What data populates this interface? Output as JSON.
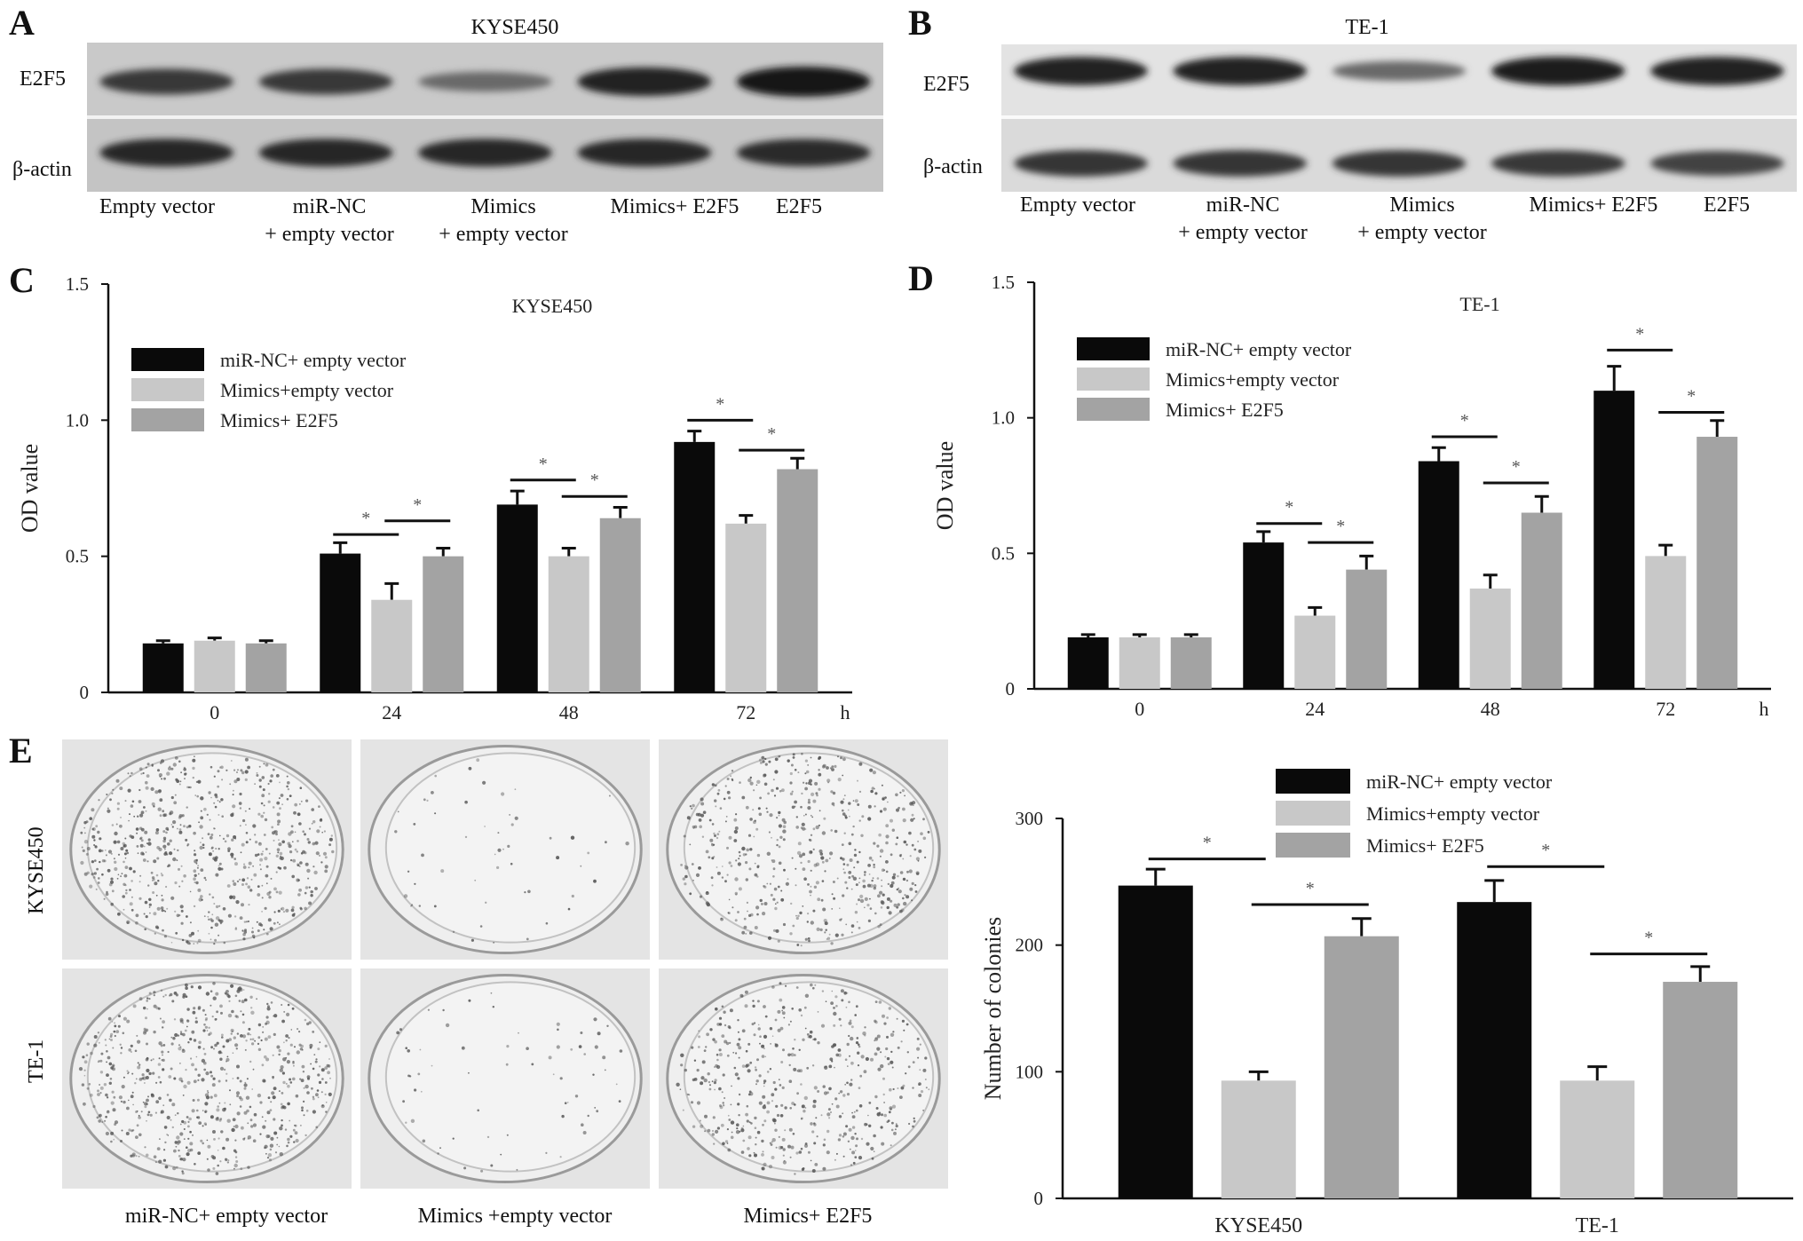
{
  "panel_letters": {
    "a": "A",
    "b": "B",
    "c": "C",
    "d": "D",
    "e": "E"
  },
  "western_blots": {
    "A": {
      "title": "KYSE450",
      "rows": [
        "E2F5",
        "β-actin"
      ],
      "lanes": [
        {
          "line1": "Empty vector",
          "line2": ""
        },
        {
          "line1": "miR-NC",
          "line2": "+ empty vector"
        },
        {
          "line1": "Mimics",
          "line2": "+ empty vector"
        },
        {
          "line1": "Mimics+ E2F5",
          "line2": ""
        },
        {
          "line1": "E2F5",
          "line2": ""
        }
      ],
      "e2f5_intensity": [
        0.72,
        0.72,
        0.35,
        0.9,
        1.0
      ],
      "actin_intensity": [
        0.85,
        0.85,
        0.85,
        0.85,
        0.82
      ]
    },
    "B": {
      "title": "TE-1",
      "rows": [
        "E2F5",
        "β-actin"
      ],
      "lanes": [
        {
          "line1": "Empty vector",
          "line2": ""
        },
        {
          "line1": "miR-NC",
          "line2": "+ empty vector"
        },
        {
          "line1": "Mimics",
          "line2": "+ empty vector"
        },
        {
          "line1": "Mimics+ E2F5",
          "line2": ""
        },
        {
          "line1": "E2F5",
          "line2": ""
        }
      ],
      "e2f5_intensity": [
        0.9,
        0.9,
        0.35,
        0.92,
        0.9
      ],
      "actin_intensity": [
        0.75,
        0.75,
        0.75,
        0.72,
        0.65
      ]
    }
  },
  "colony_panel": {
    "rows": [
      "KYSE450",
      "TE-1"
    ],
    "columns": [
      "miR-NC+ empty vector",
      "Mimics +empty vector",
      "Mimics+ E2F5"
    ],
    "colony_density": [
      [
        1.0,
        0.08,
        0.8
      ],
      [
        1.0,
        0.1,
        0.75
      ]
    ]
  },
  "colors": {
    "miR-NC+ empty vector": "#0a0a0a",
    "Mimics+empty vector": "#c8c8c8",
    "Mimics+ E2F5": "#a3a3a3"
  },
  "chart_data": [
    {
      "id": "C",
      "type": "bar",
      "title": "KYSE450",
      "ylabel": "OD value",
      "x_unit": "h",
      "categories": [
        "0",
        "24",
        "48",
        "72"
      ],
      "ylim": [
        0,
        1.5
      ],
      "yticks": [
        "0",
        "0.5",
        "1.0",
        "1.5"
      ],
      "series": [
        {
          "name": "miR-NC+ empty vector",
          "values": [
            0.18,
            0.51,
            0.69,
            0.92
          ],
          "errors": [
            0.01,
            0.04,
            0.05,
            0.04
          ]
        },
        {
          "name": "Mimics+empty vector",
          "values": [
            0.19,
            0.34,
            0.5,
            0.62
          ],
          "errors": [
            0.01,
            0.06,
            0.03,
            0.03
          ]
        },
        {
          "name": "Mimics+ E2F5",
          "values": [
            0.18,
            0.5,
            0.64,
            0.82
          ],
          "errors": [
            0.01,
            0.03,
            0.04,
            0.04
          ]
        }
      ],
      "significance": [
        {
          "category": 1,
          "from": 0,
          "to": 1,
          "y": 0.58,
          "label": "*"
        },
        {
          "category": 1,
          "from": 1,
          "to": 2,
          "y": 0.63,
          "label": "*"
        },
        {
          "category": 2,
          "from": 0,
          "to": 1,
          "y": 0.78,
          "label": "*"
        },
        {
          "category": 2,
          "from": 1,
          "to": 2,
          "y": 0.72,
          "label": "*"
        },
        {
          "category": 3,
          "from": 0,
          "to": 1,
          "y": 1.0,
          "label": "*"
        },
        {
          "category": 3,
          "from": 1,
          "to": 2,
          "y": 0.89,
          "label": "*"
        }
      ],
      "legend": "top-left"
    },
    {
      "id": "D",
      "type": "bar",
      "title": "TE-1",
      "ylabel": "OD value",
      "x_unit": "h",
      "categories": [
        "0",
        "24",
        "48",
        "72"
      ],
      "ylim": [
        0,
        1.5
      ],
      "yticks": [
        "0",
        "0.5",
        "1.0",
        "1.5"
      ],
      "series": [
        {
          "name": "miR-NC+ empty vector",
          "values": [
            0.19,
            0.54,
            0.84,
            1.1
          ],
          "errors": [
            0.01,
            0.04,
            0.05,
            0.09
          ]
        },
        {
          "name": "Mimics+empty vector",
          "values": [
            0.19,
            0.27,
            0.37,
            0.49
          ],
          "errors": [
            0.01,
            0.03,
            0.05,
            0.04
          ]
        },
        {
          "name": "Mimics+ E2F5",
          "values": [
            0.19,
            0.44,
            0.65,
            0.93
          ],
          "errors": [
            0.01,
            0.05,
            0.06,
            0.06
          ]
        }
      ],
      "significance": [
        {
          "category": 1,
          "from": 0,
          "to": 1,
          "y": 0.61,
          "label": "*"
        },
        {
          "category": 1,
          "from": 1,
          "to": 2,
          "y": 0.54,
          "label": "*"
        },
        {
          "category": 2,
          "from": 0,
          "to": 1,
          "y": 0.93,
          "label": "*"
        },
        {
          "category": 2,
          "from": 1,
          "to": 2,
          "y": 0.76,
          "label": "*"
        },
        {
          "category": 3,
          "from": 0,
          "to": 1,
          "y": 1.25,
          "label": "*"
        },
        {
          "category": 3,
          "from": 1,
          "to": 2,
          "y": 1.02,
          "label": "*"
        }
      ],
      "legend": "top-left"
    },
    {
      "id": "E",
      "type": "bar",
      "title": "",
      "ylabel": "Number of colonies",
      "x_unit": "",
      "categories": [
        "KYSE450",
        "TE-1"
      ],
      "ylim": [
        0,
        300
      ],
      "yticks": [
        "0",
        "100",
        "200",
        "300"
      ],
      "series": [
        {
          "name": "miR-NC+ empty vector",
          "values": [
            247,
            234
          ],
          "errors": [
            13,
            17
          ]
        },
        {
          "name": "Mimics+empty vector",
          "values": [
            93,
            93
          ],
          "errors": [
            7,
            11
          ]
        },
        {
          "name": "Mimics+ E2F5",
          "values": [
            207,
            171
          ],
          "errors": [
            14,
            12
          ]
        }
      ],
      "significance": [
        {
          "category": 0,
          "from": 0,
          "to": 1,
          "y": 268,
          "label": "*"
        },
        {
          "category": 0,
          "from": 1,
          "to": 2,
          "y": 232,
          "label": "*"
        },
        {
          "category": 1,
          "from": 0,
          "to": 1,
          "y": 262,
          "label": "*"
        },
        {
          "category": 1,
          "from": 1,
          "to": 2,
          "y": 193,
          "label": "*"
        }
      ],
      "legend": "top-right"
    }
  ]
}
